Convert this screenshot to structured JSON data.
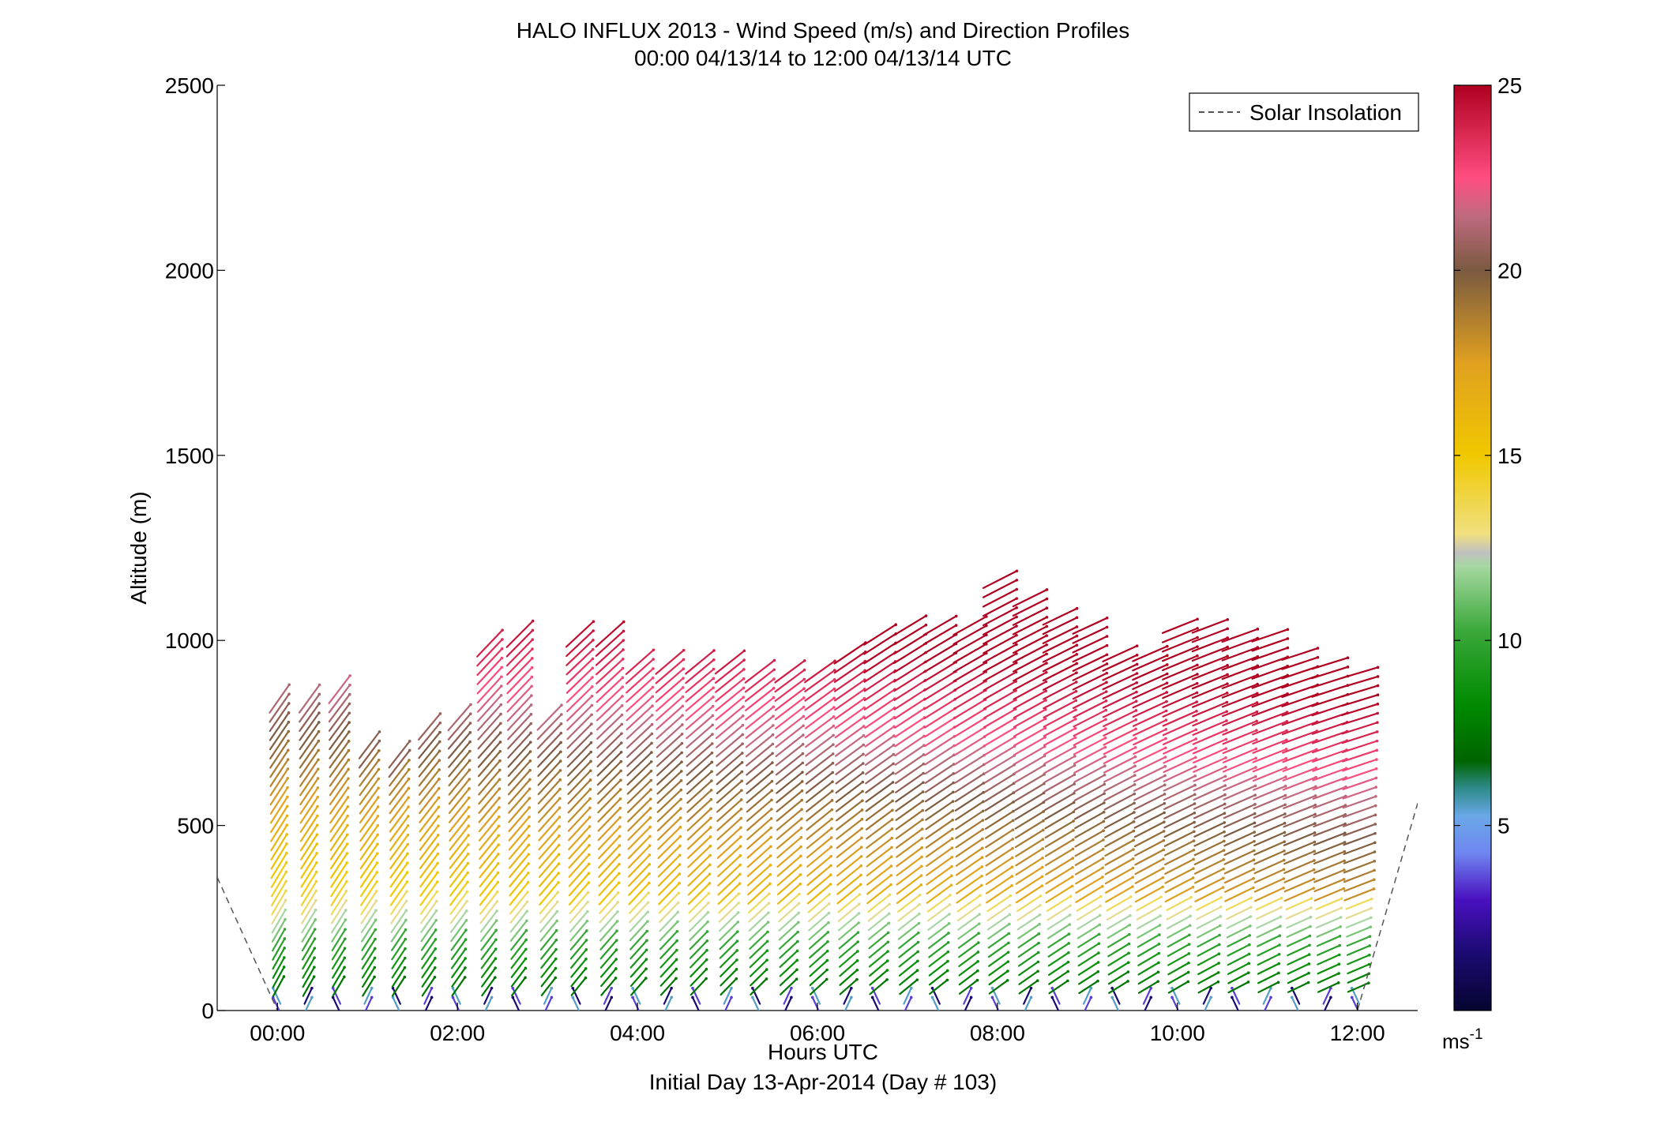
{
  "chart_data": {
    "type": "quiver",
    "title": "HALO INFLUX 2013 - Wind Speed (m/s) and Direction Profiles",
    "subtitle": "00:00 04/13/14 to 12:00 04/13/14  UTC",
    "xlabel": "Hours UTC",
    "xlabel2": "Initial Day 13-Apr-2014 (Day # 103)",
    "ylabel": "Altitude (m)",
    "xlim_hours": [
      -0.67,
      12.67
    ],
    "ylim": [
      0,
      2500
    ],
    "x_tick_hours": [
      0,
      2,
      4,
      6,
      8,
      10,
      12
    ],
    "x_tick_labels": [
      "00:00",
      "02:00",
      "04:00",
      "06:00",
      "08:00",
      "10:00",
      "12:00"
    ],
    "y_ticks": [
      0,
      500,
      1000,
      1500,
      2000,
      2500
    ],
    "y_tick_labels": [
      "0",
      "500",
      "1000",
      "1500",
      "2000",
      "2500"
    ],
    "legend": {
      "position": "top-right",
      "entries": [
        "Solar Insolation"
      ]
    },
    "colorbar": {
      "ticks": [
        5,
        10,
        15,
        20,
        25
      ],
      "tick_labels": [
        "5",
        "10",
        "15",
        "20",
        "25"
      ],
      "units": "ms",
      "units_exp": "-1",
      "range": [
        0,
        25
      ]
    },
    "solar_insolation": {
      "style": "dashed",
      "color": "#555555",
      "segments": [
        [
          [
            -0.67,
            360
          ],
          [
            0.0,
            0
          ]
        ],
        [
          [
            12.0,
            0
          ],
          [
            12.67,
            560
          ]
        ]
      ]
    },
    "wind_profiles": {
      "time_step_hours": 0.333,
      "note_units": "hours UTC, altitude m",
      "tops_m": [
        840,
        840,
        870,
        730,
        700,
        770,
        800,
        1000,
        1020,
        800,
        1030,
        1030,
        950,
        940,
        950,
        940,
        910,
        910,
        920,
        980,
        1030,
        1040,
        1040,
        1050,
        1180,
        1120,
        1080,
        1050,
        960,
        980,
        1050,
        1040,
        1020,
        1020,
        960,
        940,
        910
      ]
    }
  }
}
